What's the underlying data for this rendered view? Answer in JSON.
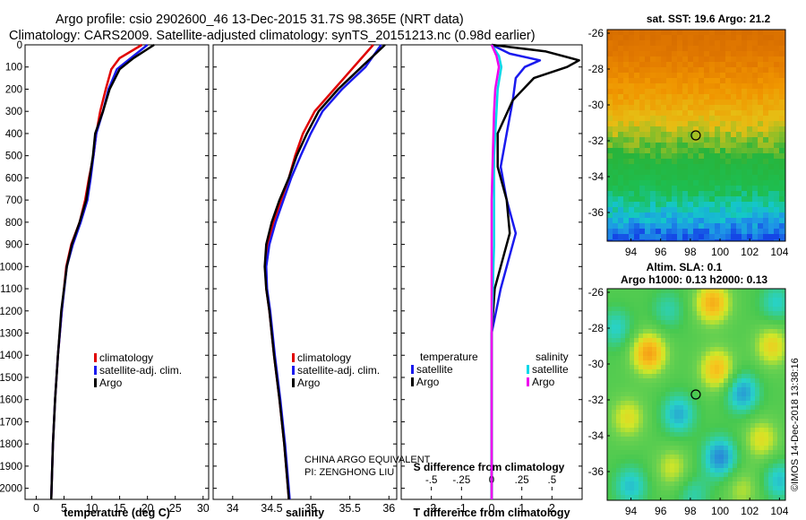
{
  "header": {
    "line1": "Argo profile: csio 2902600_46 13-Dec-2015 31.7S 98.365E (NRT data)",
    "line2": "Climatology: CARS2009. Satellite-adjusted climatology: synTS_20151213.nc (0.98d earlier)"
  },
  "colors": {
    "climatology": "#e00000",
    "satellite": "#1a1aee",
    "argo": "#000000",
    "cyan": "#00d8e8",
    "magenta": "#ee00ee"
  },
  "chart_data": [
    {
      "type": "line",
      "xlabel": "temperature (deg C)",
      "ylabel": "",
      "xlim": [
        -2,
        31
      ],
      "ylim": [
        2050,
        0
      ],
      "xticks": [
        0,
        5,
        10,
        15,
        20,
        25,
        30
      ],
      "yticks": [
        0,
        100,
        200,
        300,
        400,
        500,
        600,
        700,
        800,
        900,
        1000,
        1100,
        1200,
        1300,
        1400,
        1500,
        1600,
        1700,
        1800,
        1900,
        2000
      ],
      "legend": [
        "climatology",
        "satellite-adj. clim.",
        "Argo"
      ],
      "series": [
        {
          "name": "climatology",
          "color": "#e00000",
          "points": [
            [
              19,
              0
            ],
            [
              15,
              60
            ],
            [
              13.5,
              110
            ],
            [
              12.5,
              200
            ],
            [
              11.5,
              300
            ],
            [
              10.8,
              400
            ],
            [
              10.3,
              500
            ],
            [
              9.5,
              600
            ],
            [
              8.8,
              700
            ],
            [
              7.8,
              800
            ],
            [
              6.3,
              900
            ],
            [
              5.4,
              1000
            ],
            [
              4.6,
              1200
            ],
            [
              3.9,
              1400
            ],
            [
              3.4,
              1600
            ],
            [
              3,
              1800
            ],
            [
              2.7,
              2050
            ]
          ]
        },
        {
          "name": "satellite-adj. clim.",
          "color": "#1a1aee",
          "points": [
            [
              20,
              0
            ],
            [
              17,
              60
            ],
            [
              14.5,
              110
            ],
            [
              13,
              200
            ],
            [
              12,
              300
            ],
            [
              10.8,
              400
            ],
            [
              10.3,
              500
            ],
            [
              9.8,
              600
            ],
            [
              9.2,
              700
            ],
            [
              8,
              800
            ],
            [
              6.6,
              900
            ],
            [
              5.5,
              1000
            ],
            [
              4.6,
              1200
            ],
            [
              3.9,
              1400
            ],
            [
              3.4,
              1600
            ],
            [
              3,
              1800
            ],
            [
              2.7,
              2050
            ]
          ]
        },
        {
          "name": "Argo",
          "color": "#000000",
          "points": [
            [
              21.2,
              0
            ],
            [
              17.5,
              60
            ],
            [
              15,
              110
            ],
            [
              13.2,
              200
            ],
            [
              12,
              300
            ],
            [
              10.6,
              400
            ],
            [
              10.2,
              500
            ],
            [
              9.6,
              600
            ],
            [
              9,
              700
            ],
            [
              7.8,
              800
            ],
            [
              6.4,
              900
            ],
            [
              5.5,
              1000
            ],
            [
              4.5,
              1200
            ],
            [
              3.9,
              1400
            ],
            [
              3.4,
              1600
            ],
            [
              3,
              1800
            ],
            [
              2.7,
              2050
            ]
          ]
        }
      ]
    },
    {
      "type": "line",
      "xlabel": "salinity",
      "ylabel": "",
      "xlim": [
        33.75,
        36.1
      ],
      "ylim": [
        2050,
        0
      ],
      "xticks": [
        34,
        34.5,
        35,
        35.5,
        36
      ],
      "legend": [
        "climatology",
        "satellite-adj. clim.",
        "Argo"
      ],
      "series": [
        {
          "name": "climatology",
          "color": "#e00000",
          "points": [
            [
              35.8,
              0
            ],
            [
              35.55,
              100
            ],
            [
              35.3,
              200
            ],
            [
              35.05,
              300
            ],
            [
              34.9,
              400
            ],
            [
              34.8,
              500
            ],
            [
              34.72,
              600
            ],
            [
              34.62,
              700
            ],
            [
              34.52,
              800
            ],
            [
              34.45,
              900
            ],
            [
              34.42,
              1000
            ],
            [
              34.43,
              1100
            ],
            [
              34.47,
              1200
            ],
            [
              34.53,
              1400
            ],
            [
              34.6,
              1600
            ],
            [
              34.66,
              1800
            ],
            [
              34.72,
              2050
            ]
          ]
        },
        {
          "name": "satellite-adj. clim.",
          "color": "#1a1aee",
          "points": [
            [
              35.9,
              0
            ],
            [
              35.7,
              100
            ],
            [
              35.4,
              200
            ],
            [
              35.15,
              300
            ],
            [
              35,
              400
            ],
            [
              34.87,
              500
            ],
            [
              34.75,
              600
            ],
            [
              34.65,
              700
            ],
            [
              34.55,
              800
            ],
            [
              34.47,
              900
            ],
            [
              34.43,
              1000
            ],
            [
              34.44,
              1100
            ],
            [
              34.48,
              1200
            ],
            [
              34.54,
              1400
            ],
            [
              34.61,
              1600
            ],
            [
              34.67,
              1800
            ],
            [
              34.73,
              2050
            ]
          ]
        },
        {
          "name": "Argo",
          "color": "#000000",
          "points": [
            [
              35.95,
              0
            ],
            [
              35.65,
              100
            ],
            [
              35.35,
              200
            ],
            [
              35.1,
              300
            ],
            [
              34.95,
              400
            ],
            [
              34.82,
              500
            ],
            [
              34.72,
              600
            ],
            [
              34.6,
              700
            ],
            [
              34.5,
              800
            ],
            [
              34.43,
              900
            ],
            [
              34.41,
              1000
            ],
            [
              34.43,
              1100
            ],
            [
              34.47,
              1200
            ],
            [
              34.53,
              1400
            ],
            [
              34.6,
              1600
            ],
            [
              34.66,
              1800
            ],
            [
              34.72,
              2050
            ]
          ]
        }
      ]
    },
    {
      "type": "line",
      "xlabel": "T difference from climatology",
      "ylabel": "",
      "xlim": [
        -3,
        3
      ],
      "ylim": [
        2050,
        0
      ],
      "xticks": [
        -2,
        -1,
        0,
        1,
        2
      ],
      "top_axis_label": "S difference from climatology",
      "top_xlim": [
        -0.75,
        0.75
      ],
      "top_xticks": [
        -0.5,
        -0.25,
        0,
        0.25,
        0.5
      ],
      "legend_groups": [
        {
          "title": "temperature",
          "items": [
            "satellite",
            "Argo"
          ]
        },
        {
          "title": "salinity",
          "items": [
            "satellite",
            "Argo"
          ]
        }
      ],
      "series": [
        {
          "name": "temperature satellite",
          "color": "#1a1aee",
          "axis": "T",
          "points": [
            [
              0,
              0
            ],
            [
              0.6,
              40
            ],
            [
              1.6,
              70
            ],
            [
              1.1,
              100
            ],
            [
              0.8,
              150
            ],
            [
              0.7,
              250
            ],
            [
              0.5,
              400
            ],
            [
              0.3,
              550
            ],
            [
              0.5,
              700
            ],
            [
              0.8,
              850
            ],
            [
              0.5,
              1000
            ],
            [
              0.3,
              1100
            ],
            [
              0,
              1300
            ],
            [
              0,
              1700
            ],
            [
              0,
              2050
            ]
          ]
        },
        {
          "name": "temperature Argo",
          "color": "#000000",
          "axis": "T",
          "points": [
            [
              0,
              0
            ],
            [
              1.8,
              30
            ],
            [
              2.9,
              70
            ],
            [
              2.5,
              100
            ],
            [
              1.4,
              150
            ],
            [
              0.7,
              250
            ],
            [
              0.2,
              400
            ],
            [
              0.2,
              550
            ],
            [
              0.5,
              700
            ],
            [
              0.6,
              850
            ],
            [
              0.3,
              1000
            ],
            [
              0.1,
              1100
            ],
            [
              0,
              1300
            ],
            [
              0,
              1700
            ],
            [
              0,
              2050
            ]
          ]
        },
        {
          "name": "salinity satellite",
          "color": "#00d8e8",
          "axis": "S",
          "points": [
            [
              0,
              0
            ],
            [
              0.06,
              50
            ],
            [
              0.08,
              100
            ],
            [
              0.05,
              200
            ],
            [
              0.04,
              300
            ],
            [
              0.02,
              500
            ],
            [
              0.02,
              700
            ],
            [
              0.02,
              900
            ],
            [
              0.01,
              1100
            ],
            [
              0,
              1300
            ],
            [
              0,
              1700
            ],
            [
              0,
              2050
            ]
          ]
        },
        {
          "name": "salinity Argo",
          "color": "#ee00ee",
          "axis": "S",
          "points": [
            [
              0,
              0
            ],
            [
              0.04,
              50
            ],
            [
              0.06,
              100
            ],
            [
              0.03,
              200
            ],
            [
              0.02,
              300
            ],
            [
              0.01,
              500
            ],
            [
              0,
              700
            ],
            [
              0,
              900
            ],
            [
              0,
              1100
            ],
            [
              0,
              1300
            ],
            [
              0,
              2050
            ]
          ]
        }
      ]
    },
    {
      "type": "heatmap",
      "title": "sat. SST: 19.6 Argo: 21.2",
      "xlim": [
        92.4,
        104.4
      ],
      "ylim": [
        -37.6,
        -25.8
      ],
      "xticks": [
        94,
        96,
        98,
        100,
        102,
        104
      ],
      "yticks": [
        -26,
        -28,
        -30,
        -32,
        -34,
        -36
      ],
      "marker": {
        "lon": 98.365,
        "lat": -31.7
      }
    },
    {
      "type": "heatmap",
      "title": "Altim. SLA: 0.1",
      "subtitle": "Argo h1000: 0.13 h2000: 0.13",
      "xlim": [
        92.4,
        104.4
      ],
      "ylim": [
        -37.6,
        -25.8
      ],
      "xticks": [
        94,
        96,
        98,
        100,
        102,
        104
      ],
      "yticks": [
        -26,
        -28,
        -30,
        -32,
        -34,
        -36
      ],
      "marker": {
        "lon": 98.365,
        "lat": -31.7
      }
    }
  ],
  "footer": {
    "program": "CHINA ARGO EQUIVALENT",
    "pi": "PI: ZENGHONG LIU",
    "credit": "©IMOS 14-Dec-2018 13:38:16"
  }
}
